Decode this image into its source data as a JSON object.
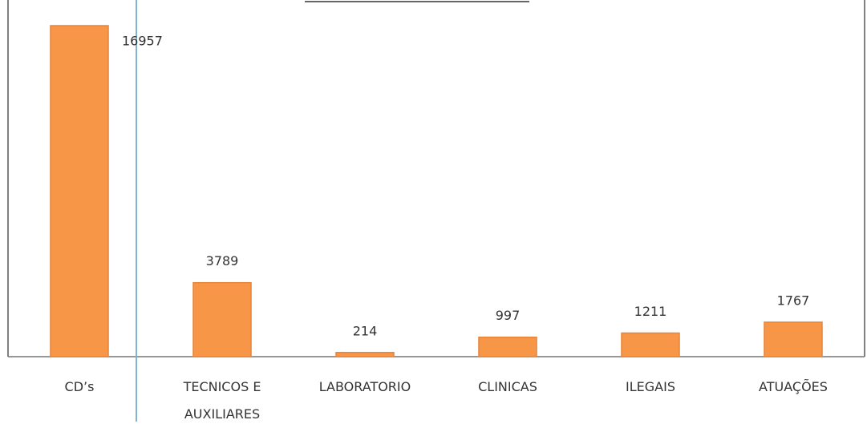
{
  "chart_data": {
    "type": "bar",
    "categories": [
      "CD’s",
      "TECNICOS E AUXILIARES",
      "LABORATORIO",
      "CLINICAS",
      "ILEGAIS",
      "ATUAÇÕES"
    ],
    "values": [
      16957,
      3789,
      214,
      997,
      1211,
      1767
    ],
    "color": "#f79646"
  }
}
